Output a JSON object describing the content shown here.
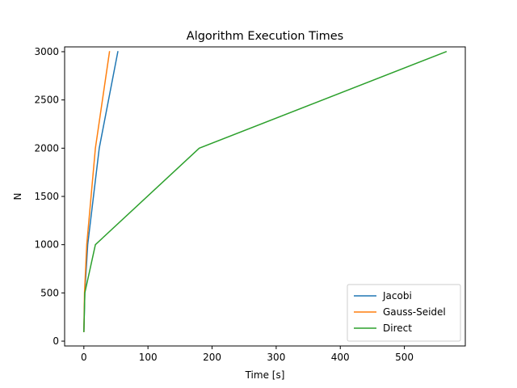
{
  "chart_data": {
    "type": "line",
    "title": "Algorithm Execution Times",
    "xlabel": "Time [s]",
    "ylabel": "N",
    "xlim": [
      -30,
      595
    ],
    "ylim": [
      -50,
      3050
    ],
    "xticks": [
      0,
      100,
      200,
      300,
      400,
      500
    ],
    "yticks": [
      0,
      500,
      1000,
      1500,
      2000,
      2500,
      3000
    ],
    "grid": false,
    "legend_position": "lower-right",
    "series": [
      {
        "name": "Jacobi",
        "color": "#1f77b4",
        "points": [
          [
            0.05,
            100
          ],
          [
            1.5,
            500
          ],
          [
            6,
            1000
          ],
          [
            24,
            2000
          ],
          [
            53,
            3000
          ]
        ]
      },
      {
        "name": "Gauss-Seidel",
        "color": "#ff7f0e",
        "points": [
          [
            0.05,
            100
          ],
          [
            1,
            500
          ],
          [
            4.5,
            1000
          ],
          [
            18,
            2000
          ],
          [
            40,
            3000
          ]
        ]
      },
      {
        "name": "Direct",
        "color": "#2ca02c",
        "points": [
          [
            0.01,
            100
          ],
          [
            1.5,
            500
          ],
          [
            18,
            1000
          ],
          [
            180,
            2000
          ],
          [
            565,
            3000
          ]
        ]
      }
    ]
  }
}
